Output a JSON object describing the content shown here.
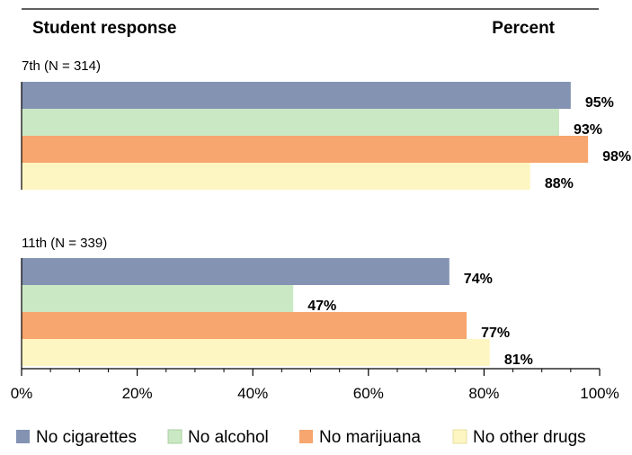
{
  "chart_data": {
    "type": "bar",
    "orientation": "horizontal",
    "header_left": "Student response",
    "header_right": "Percent",
    "categories": [
      "7th (N = 314)",
      "11th (N = 339)"
    ],
    "series": [
      {
        "name": "No cigarettes",
        "values": [
          95,
          74
        ],
        "labels": [
          "95%",
          "74%"
        ],
        "color": "#8493b2"
      },
      {
        "name": "No alcohol",
        "values": [
          93,
          47
        ],
        "labels": [
          "93%",
          "47%"
        ],
        "color": "#cbe8c4"
      },
      {
        "name": "No marijuana",
        "values": [
          98,
          77
        ],
        "labels": [
          "98%",
          "77%"
        ],
        "color": "#f6a66e"
      },
      {
        "name": "No other drugs",
        "values": [
          88,
          81
        ],
        "labels": [
          "88%",
          "81%"
        ],
        "color": "#fdf6c3"
      }
    ],
    "xlim": [
      0,
      100
    ],
    "xticks": [
      0,
      20,
      40,
      60,
      80,
      100
    ],
    "xtick_labels": [
      "0%",
      "20%",
      "40%",
      "60%",
      "80%",
      "100%"
    ],
    "grid": false,
    "legend_position": "bottom"
  }
}
